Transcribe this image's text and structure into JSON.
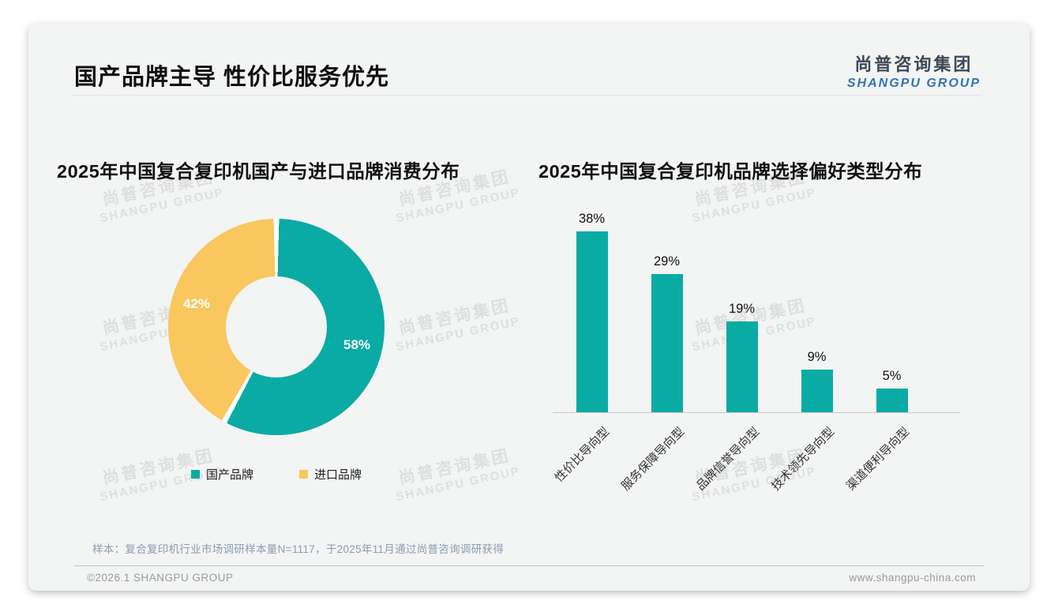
{
  "page": {
    "title": "国产品牌主导 性价比服务优先",
    "logo": {
      "cn": "尚普咨询集团",
      "en": "SHANGPU GROUP"
    },
    "watermark": {
      "cn": "尚普咨询集团",
      "en": "SHANGPU GROUP"
    },
    "footer": {
      "sample_note": "样本：复合复印机行业市场调研样本量N=1117，于2025年11月通过尚普咨询调研获得",
      "copyright": "©2026.1 SHANGPU GROUP",
      "website": "www.shangpu-china.com"
    }
  },
  "colors": {
    "teal": "#0aaba4",
    "yellow": "#f9c75d",
    "card_bg": "#f3f4f4",
    "logo_en_blue": "#2e74b5"
  },
  "chart_data": [
    {
      "type": "pie",
      "subtype": "donut",
      "title": "2025年中国复合复印机国产与进口品牌消费分布",
      "labels": [
        "国产品牌",
        "进口品牌"
      ],
      "values": [
        58,
        42
      ],
      "value_labels": [
        "58%",
        "42%"
      ],
      "colors": [
        "#0aaba4",
        "#f9c75d"
      ],
      "legend_position": "bottom",
      "start_angle_deg": 0,
      "direction": "clockwise"
    },
    {
      "type": "bar",
      "title": "2025年中国复合复印机品牌选择偏好类型分布",
      "categories": [
        "性价比导向型",
        "服务保障导向型",
        "品牌信誉导向型",
        "技术领先导向型",
        "渠道便利导向型"
      ],
      "values": [
        38,
        29,
        19,
        9,
        5
      ],
      "value_labels": [
        "38%",
        "29%",
        "19%",
        "9%",
        "5%"
      ],
      "unit": "%",
      "bar_color": "#0aaba4",
      "ylim": [
        0,
        40
      ],
      "grid": false,
      "xlabel": "",
      "ylabel": ""
    }
  ]
}
